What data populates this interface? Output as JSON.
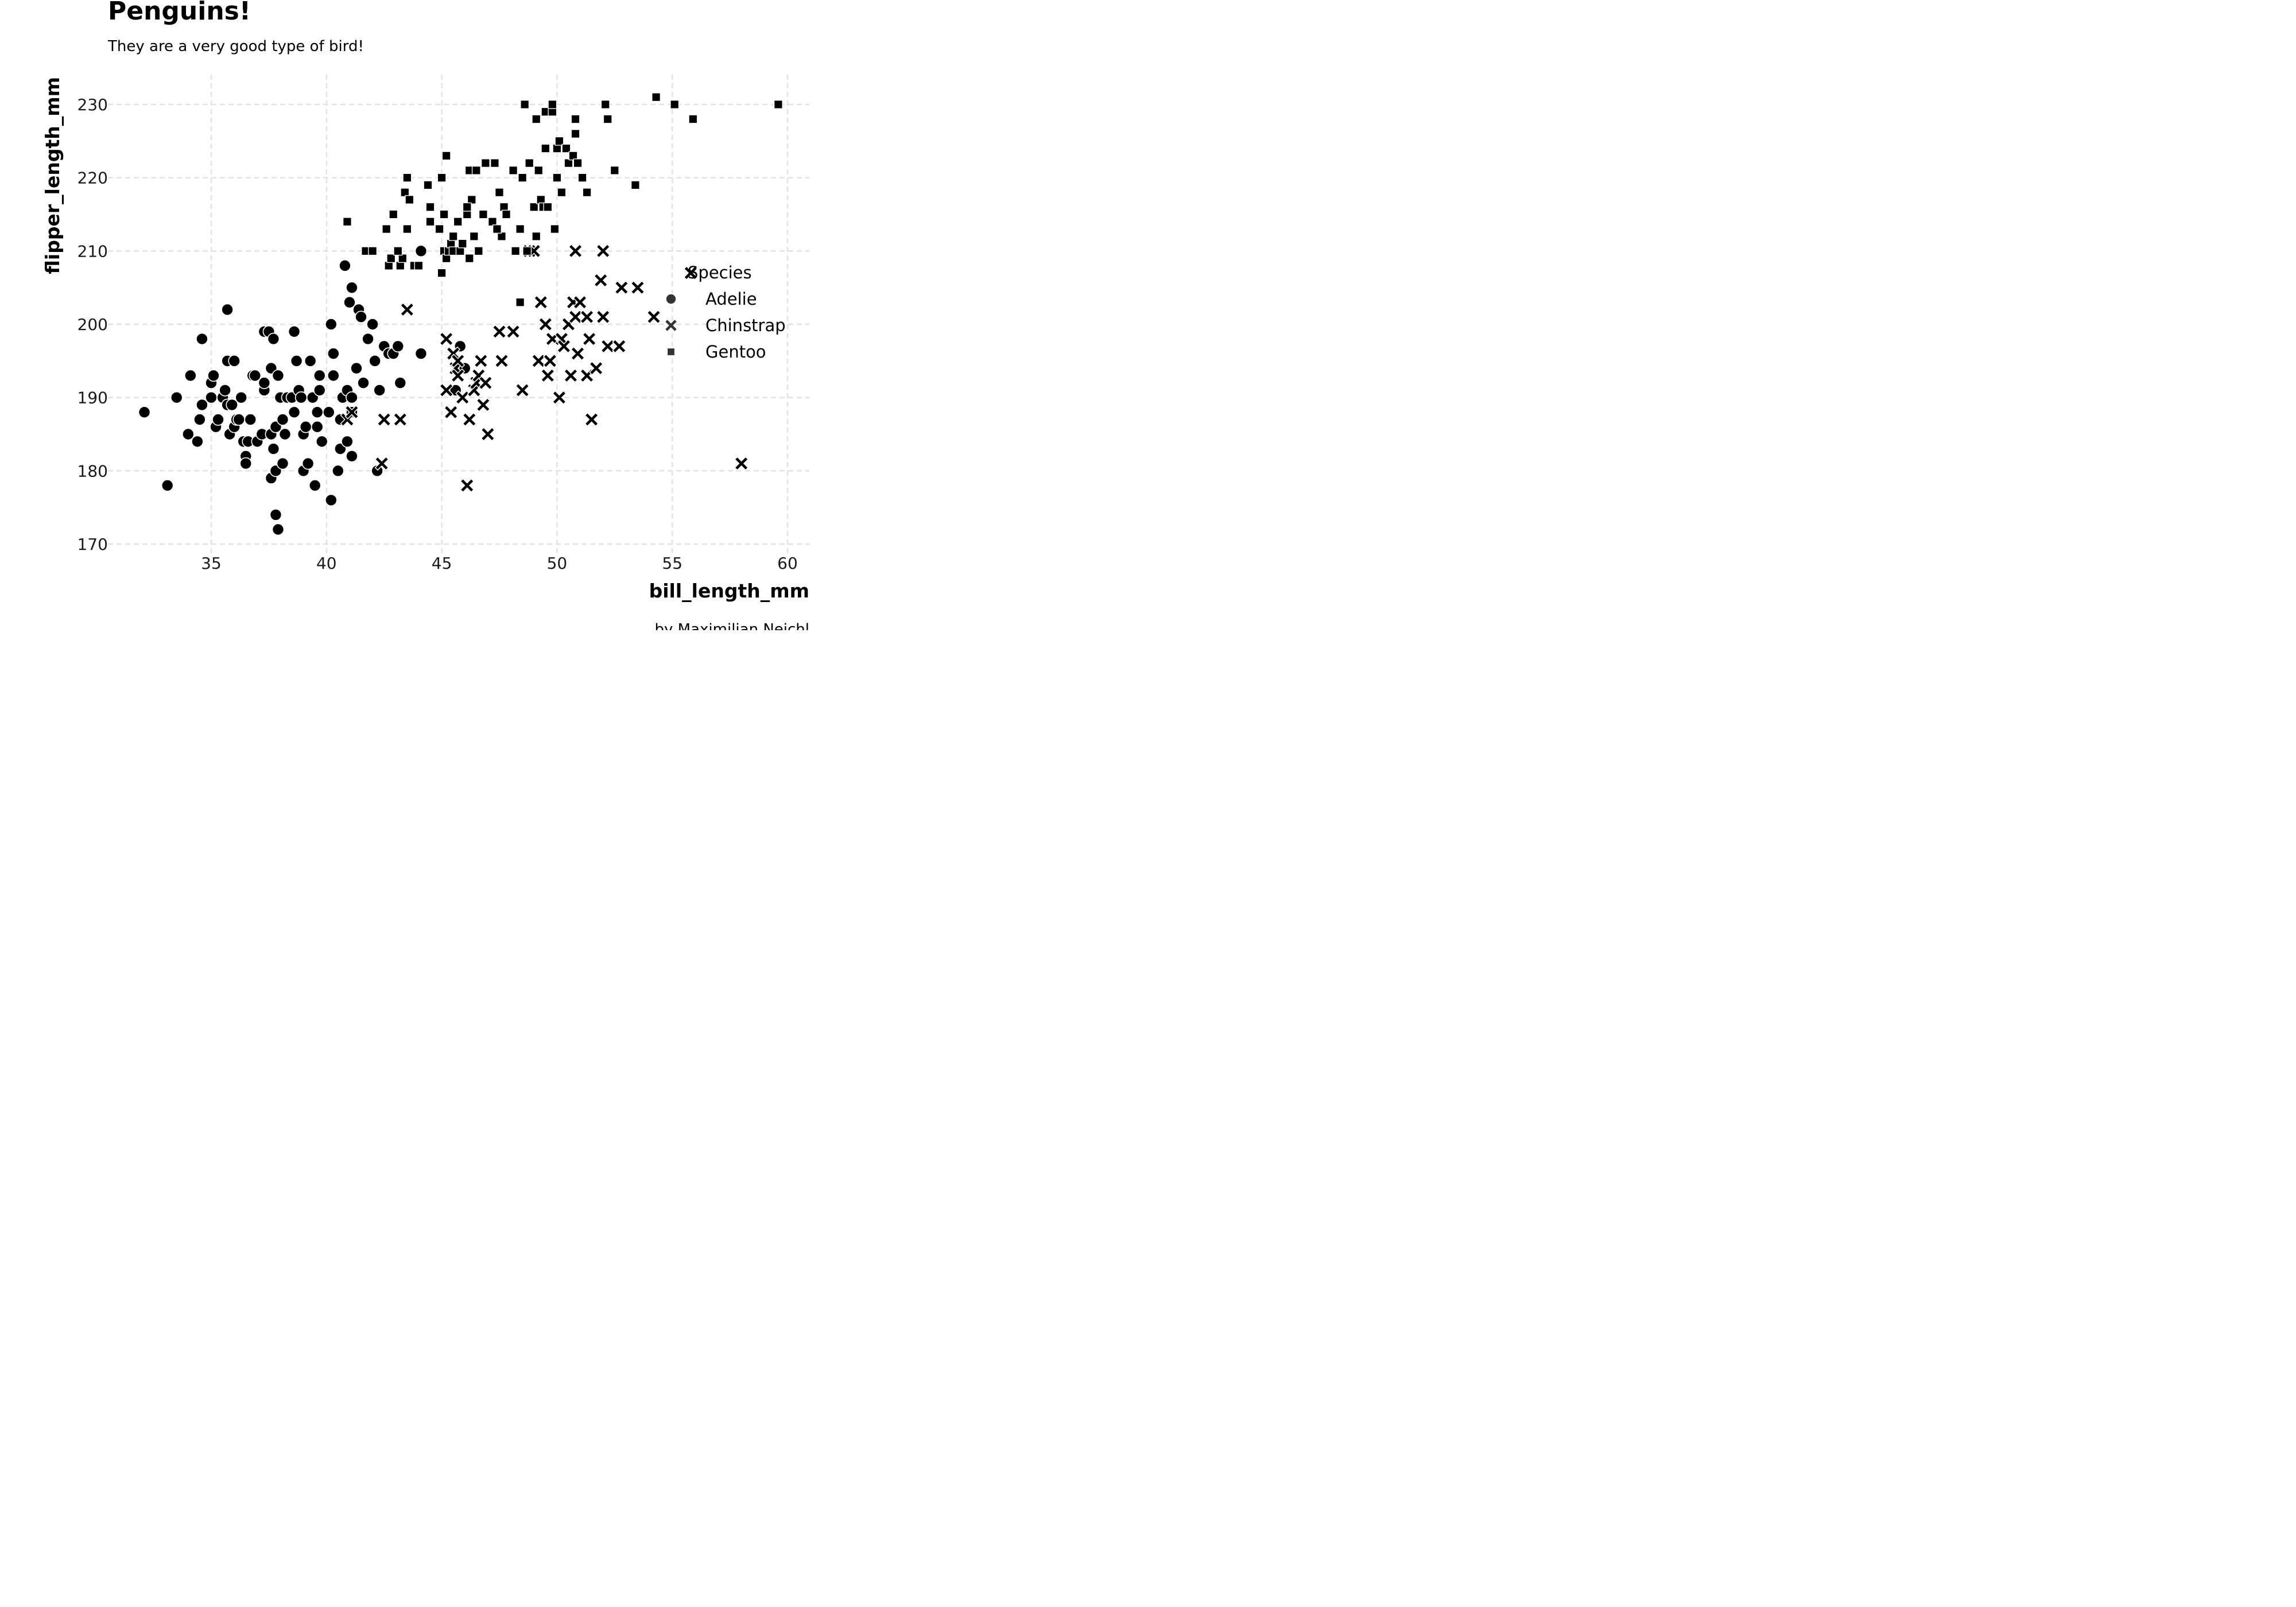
{
  "chart_data": {
    "type": "scatter",
    "title": "Penguins!",
    "subtitle": "They are a very good type of bird!",
    "xlabel": "bill_length_mm",
    "ylabel": "flipper_length_mm",
    "caption": "by Maximilian Neichl",
    "xlim": [
      31,
      61
    ],
    "ylim": [
      169,
      234
    ],
    "xticks": [
      "35",
      "40",
      "45",
      "50",
      "55",
      "60"
    ],
    "yticks": [
      "170",
      "180",
      "190",
      "200",
      "210",
      "220",
      "230"
    ],
    "grid": true,
    "legend": {
      "title": "Species",
      "placement": "right"
    },
    "series": [
      {
        "name": "Adelie",
        "marker": "circle",
        "color": "#000000",
        "points": [
          [
            32.1,
            188
          ],
          [
            33.1,
            178
          ],
          [
            33.5,
            190
          ],
          [
            34.0,
            185
          ],
          [
            34.1,
            193
          ],
          [
            34.4,
            184
          ],
          [
            34.5,
            187
          ],
          [
            34.6,
            198
          ],
          [
            34.6,
            189
          ],
          [
            35.0,
            190
          ],
          [
            35.0,
            192
          ],
          [
            35.1,
            193
          ],
          [
            35.2,
            186
          ],
          [
            35.3,
            187
          ],
          [
            35.5,
            190
          ],
          [
            35.6,
            191
          ],
          [
            35.7,
            195
          ],
          [
            35.7,
            202
          ],
          [
            35.7,
            189
          ],
          [
            35.8,
            185
          ],
          [
            35.9,
            189
          ],
          [
            36.0,
            186
          ],
          [
            36.0,
            195
          ],
          [
            36.1,
            187
          ],
          [
            36.2,
            187
          ],
          [
            36.3,
            190
          ],
          [
            36.4,
            184
          ],
          [
            36.5,
            182
          ],
          [
            36.5,
            181
          ],
          [
            36.6,
            184
          ],
          [
            36.7,
            187
          ],
          [
            36.8,
            193
          ],
          [
            36.9,
            193
          ],
          [
            37.0,
            184
          ],
          [
            37.2,
            185
          ],
          [
            37.3,
            191
          ],
          [
            37.3,
            192
          ],
          [
            37.3,
            199
          ],
          [
            37.5,
            199
          ],
          [
            37.6,
            179
          ],
          [
            37.6,
            185
          ],
          [
            37.6,
            194
          ],
          [
            37.7,
            183
          ],
          [
            37.7,
            198
          ],
          [
            37.8,
            174
          ],
          [
            37.8,
            180
          ],
          [
            37.8,
            186
          ],
          [
            37.9,
            172
          ],
          [
            37.9,
            193
          ],
          [
            38.0,
            190
          ],
          [
            38.1,
            187
          ],
          [
            38.1,
            181
          ],
          [
            38.2,
            185
          ],
          [
            38.3,
            190
          ],
          [
            38.5,
            190
          ],
          [
            38.6,
            188
          ],
          [
            38.6,
            199
          ],
          [
            38.7,
            195
          ],
          [
            38.8,
            191
          ],
          [
            38.9,
            190
          ],
          [
            39.0,
            180
          ],
          [
            39.0,
            185
          ],
          [
            39.1,
            186
          ],
          [
            39.2,
            181
          ],
          [
            39.3,
            195
          ],
          [
            39.4,
            190
          ],
          [
            39.5,
            178
          ],
          [
            39.6,
            188
          ],
          [
            39.6,
            186
          ],
          [
            39.7,
            193
          ],
          [
            39.7,
            191
          ],
          [
            39.8,
            184
          ],
          [
            40.1,
            188
          ],
          [
            40.2,
            176
          ],
          [
            40.2,
            200
          ],
          [
            40.3,
            193
          ],
          [
            40.3,
            196
          ],
          [
            40.5,
            180
          ],
          [
            40.6,
            187
          ],
          [
            40.6,
            183
          ],
          [
            40.7,
            190
          ],
          [
            40.8,
            208
          ],
          [
            40.9,
            184
          ],
          [
            40.9,
            191
          ],
          [
            41.0,
            203
          ],
          [
            41.1,
            188
          ],
          [
            41.1,
            190
          ],
          [
            41.1,
            182
          ],
          [
            41.1,
            205
          ],
          [
            41.3,
            194
          ],
          [
            41.4,
            202
          ],
          [
            41.5,
            201
          ],
          [
            41.6,
            192
          ],
          [
            41.8,
            198
          ],
          [
            42.0,
            200
          ],
          [
            42.1,
            195
          ],
          [
            42.2,
            180
          ],
          [
            42.3,
            191
          ],
          [
            42.5,
            197
          ],
          [
            42.7,
            196
          ],
          [
            42.9,
            196
          ],
          [
            43.1,
            197
          ],
          [
            43.2,
            192
          ],
          [
            44.1,
            196
          ],
          [
            44.1,
            210
          ],
          [
            45.8,
            197
          ],
          [
            46.0,
            194
          ],
          [
            45.6,
            191
          ]
        ]
      },
      {
        "name": "Chinstrap",
        "marker": "x",
        "color": "#000000",
        "points": [
          [
            40.9,
            187
          ],
          [
            41.1,
            188
          ],
          [
            42.4,
            181
          ],
          [
            42.5,
            187
          ],
          [
            43.2,
            187
          ],
          [
            43.5,
            202
          ],
          [
            45.2,
            198
          ],
          [
            45.2,
            191
          ],
          [
            45.4,
            188
          ],
          [
            45.5,
            196
          ],
          [
            45.6,
            194
          ],
          [
            45.7,
            195
          ],
          [
            45.7,
            193
          ],
          [
            45.9,
            190
          ],
          [
            46.1,
            178
          ],
          [
            46.2,
            187
          ],
          [
            46.4,
            191
          ],
          [
            46.5,
            192
          ],
          [
            46.6,
            193
          ],
          [
            46.7,
            195
          ],
          [
            46.8,
            189
          ],
          [
            46.9,
            192
          ],
          [
            47.0,
            185
          ],
          [
            47.5,
            199
          ],
          [
            47.6,
            195
          ],
          [
            48.1,
            199
          ],
          [
            48.5,
            191
          ],
          [
            48.8,
            210
          ],
          [
            49.0,
            210
          ],
          [
            49.2,
            195
          ],
          [
            49.3,
            203
          ],
          [
            49.5,
            200
          ],
          [
            49.6,
            193
          ],
          [
            49.7,
            195
          ],
          [
            49.8,
            198
          ],
          [
            50.1,
            190
          ],
          [
            50.2,
            198
          ],
          [
            50.3,
            197
          ],
          [
            50.5,
            200
          ],
          [
            50.6,
            193
          ],
          [
            50.7,
            203
          ],
          [
            50.8,
            201
          ],
          [
            50.9,
            196
          ],
          [
            51.0,
            203
          ],
          [
            51.3,
            193
          ],
          [
            51.4,
            198
          ],
          [
            51.5,
            187
          ],
          [
            51.7,
            194
          ],
          [
            51.9,
            206
          ],
          [
            52.0,
            201
          ],
          [
            52.0,
            210
          ],
          [
            52.2,
            197
          ],
          [
            52.7,
            197
          ],
          [
            52.8,
            205
          ],
          [
            53.5,
            205
          ],
          [
            54.2,
            201
          ],
          [
            55.8,
            207
          ],
          [
            58.0,
            181
          ],
          [
            50.8,
            210
          ],
          [
            51.3,
            201
          ]
        ]
      },
      {
        "name": "Gentoo",
        "marker": "square",
        "color": "#000000",
        "points": [
          [
            40.9,
            214
          ],
          [
            41.7,
            210
          ],
          [
            42.0,
            210
          ],
          [
            42.6,
            213
          ],
          [
            42.7,
            208
          ],
          [
            42.8,
            209
          ],
          [
            42.9,
            215
          ],
          [
            43.2,
            208
          ],
          [
            43.3,
            209
          ],
          [
            43.4,
            218
          ],
          [
            43.5,
            213
          ],
          [
            43.5,
            220
          ],
          [
            43.6,
            217
          ],
          [
            43.8,
            208
          ],
          [
            44.0,
            208
          ],
          [
            44.4,
            219
          ],
          [
            44.5,
            214
          ],
          [
            44.5,
            216
          ],
          [
            44.9,
            213
          ],
          [
            45.0,
            220
          ],
          [
            45.1,
            215
          ],
          [
            45.1,
            210
          ],
          [
            45.2,
            209
          ],
          [
            45.2,
            223
          ],
          [
            45.3,
            210
          ],
          [
            45.4,
            211
          ],
          [
            45.5,
            210
          ],
          [
            45.5,
            212
          ],
          [
            45.7,
            214
          ],
          [
            45.8,
            210
          ],
          [
            46.1,
            215
          ],
          [
            46.2,
            221
          ],
          [
            46.2,
            209
          ],
          [
            46.3,
            217
          ],
          [
            46.4,
            212
          ],
          [
            46.5,
            221
          ],
          [
            46.6,
            210
          ],
          [
            46.8,
            215
          ],
          [
            46.9,
            222
          ],
          [
            47.2,
            214
          ],
          [
            47.3,
            222
          ],
          [
            47.5,
            218
          ],
          [
            47.6,
            212
          ],
          [
            47.7,
            216
          ],
          [
            47.8,
            215
          ],
          [
            48.1,
            221
          ],
          [
            48.2,
            210
          ],
          [
            48.4,
            213
          ],
          [
            48.5,
            220
          ],
          [
            48.6,
            230
          ],
          [
            48.7,
            210
          ],
          [
            48.8,
            222
          ],
          [
            49.0,
            216
          ],
          [
            49.1,
            212
          ],
          [
            49.1,
            228
          ],
          [
            49.2,
            221
          ],
          [
            49.3,
            217
          ],
          [
            49.4,
            216
          ],
          [
            49.5,
            229
          ],
          [
            49.6,
            216
          ],
          [
            49.8,
            229
          ],
          [
            49.8,
            230
          ],
          [
            49.9,
            213
          ],
          [
            50.0,
            220
          ],
          [
            50.0,
            224
          ],
          [
            50.1,
            225
          ],
          [
            50.2,
            218
          ],
          [
            50.4,
            224
          ],
          [
            50.5,
            222
          ],
          [
            50.7,
            223
          ],
          [
            50.8,
            228
          ],
          [
            50.8,
            226
          ],
          [
            51.1,
            220
          ],
          [
            51.3,
            218
          ],
          [
            52.1,
            230
          ],
          [
            52.2,
            228
          ],
          [
            52.5,
            221
          ],
          [
            53.4,
            219
          ],
          [
            54.3,
            231
          ],
          [
            55.1,
            230
          ],
          [
            55.9,
            228
          ],
          [
            59.6,
            230
          ],
          [
            48.4,
            203
          ],
          [
            49.5,
            224
          ],
          [
            45.0,
            207
          ],
          [
            43.1,
            210
          ],
          [
            45.9,
            211
          ],
          [
            47.4,
            213
          ],
          [
            50.9,
            222
          ],
          [
            46.1,
            216
          ]
        ]
      }
    ]
  }
}
